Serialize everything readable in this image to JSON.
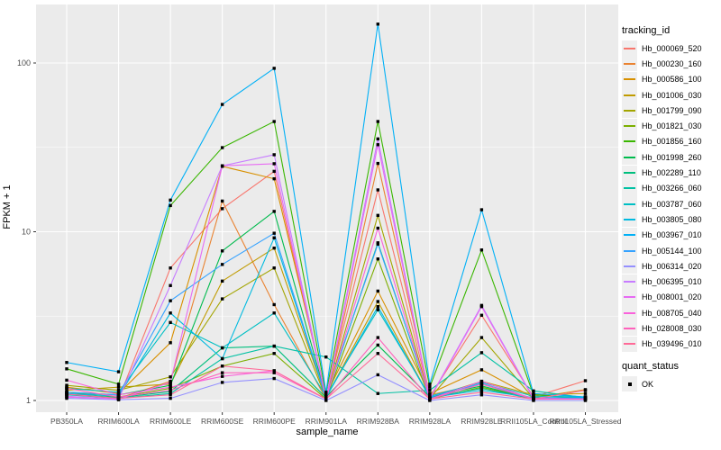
{
  "figure": {
    "y_axis": {
      "title": "FPKM + 1"
    },
    "x_axis": {
      "title": "sample_name"
    },
    "legend_tracking": {
      "title": "tracking_id"
    },
    "legend_quant": {
      "title": "quant_status",
      "items": [
        {
          "label": "OK"
        }
      ]
    }
  },
  "chart_data": {
    "type": "line",
    "title": "",
    "xlabel": "sample_name",
    "ylabel": "FPKM + 1",
    "y_scale": "log10",
    "ylim": [
      0.85,
      220
    ],
    "grid": "on",
    "legend_position": "right",
    "panel_background": "#EBEBEB",
    "gridline_color": "#FFFFFF",
    "point_color": "#000000",
    "point_shape": "square",
    "quant_status_label": "OK",
    "y_tick_labels": [
      "1",
      "10",
      "100"
    ],
    "y_major_ticks": [
      1,
      10,
      100
    ],
    "y_minor_gridlines": [
      3.162,
      31.62
    ],
    "categories": [
      "PB350LA",
      "RRIM600LA",
      "RRIM600LE",
      "RRIM600SE",
      "RRIM600PE",
      "RRIM901LA",
      "RRIM928BA",
      "RRIM928LA",
      "RRIM928LE",
      "RRII105LA_Control",
      "RRII105LA_Stressed"
    ],
    "series": [
      {
        "name": "Hb_000069_520",
        "color": "#F8766D",
        "values": [
          1.05,
          1.02,
          6.1,
          13.7,
          22.8,
          1.05,
          17.7,
          1.05,
          3.2,
          1.05,
          1.31
        ]
      },
      {
        "name": "Hb_000230_160",
        "color": "#EA8331",
        "values": [
          1.1,
          1.03,
          1.3,
          15.2,
          3.7,
          1.02,
          25.4,
          1.08,
          1.25,
          1.02,
          1.02
        ]
      },
      {
        "name": "Hb_000586_100",
        "color": "#D89000",
        "values": [
          1.2,
          1.1,
          2.2,
          24.4,
          20.6,
          1.08,
          4.45,
          1.1,
          1.52,
          1.04,
          1.16
        ]
      },
      {
        "name": "Hb_001006_030",
        "color": "#C09B00",
        "values": [
          1.15,
          1.2,
          1.25,
          5.1,
          8.0,
          1.04,
          3.86,
          1.04,
          1.3,
          1.08,
          1.1
        ]
      },
      {
        "name": "Hb_001799_090",
        "color": "#A3A500",
        "values": [
          1.23,
          1.15,
          1.38,
          4.0,
          6.1,
          1.03,
          12.5,
          1.03,
          2.36,
          1.03,
          1.05
        ]
      },
      {
        "name": "Hb_001821_030",
        "color": "#7CAE00",
        "values": [
          1.12,
          1.05,
          1.18,
          1.6,
          1.9,
          1.02,
          6.9,
          1.02,
          1.2,
          1.02,
          1.03
        ]
      },
      {
        "name": "Hb_001856_160",
        "color": "#39B600",
        "values": [
          1.54,
          1.25,
          14.3,
          31.5,
          45.0,
          1.1,
          45.0,
          1.2,
          7.8,
          1.08,
          1.03
        ]
      },
      {
        "name": "Hb_001998_260",
        "color": "#00BB4E",
        "values": [
          1.12,
          1.08,
          1.23,
          7.7,
          13.2,
          1.05,
          2.13,
          1.05,
          1.22,
          1.02,
          1.02
        ]
      },
      {
        "name": "Hb_002289_110",
        "color": "#00BF7D",
        "values": [
          1.09,
          1.04,
          1.13,
          2.05,
          2.1,
          1.04,
          8.6,
          1.04,
          1.18,
          1.02,
          1.02
        ]
      },
      {
        "name": "Hb_003266_060",
        "color": "#00C1A3",
        "values": [
          1.08,
          1.03,
          1.1,
          1.77,
          2.1,
          1.81,
          1.1,
          1.15,
          1.92,
          1.14,
          1.04
        ]
      },
      {
        "name": "Hb_003787_060",
        "color": "#00BFC4",
        "values": [
          1.18,
          1.12,
          2.9,
          2.05,
          3.3,
          1.06,
          3.45,
          1.06,
          1.28,
          1.06,
          1.05
        ]
      },
      {
        "name": "Hb_003805_080",
        "color": "#00BAE0",
        "values": [
          1.1,
          1.06,
          3.3,
          1.77,
          9.2,
          1.04,
          3.6,
          1.04,
          1.15,
          1.04,
          1.04
        ]
      },
      {
        "name": "Hb_003967_010",
        "color": "#00B0F6",
        "values": [
          1.68,
          1.48,
          15.4,
          56.8,
          93.0,
          1.12,
          170.0,
          1.25,
          13.5,
          1.1,
          1.05
        ]
      },
      {
        "name": "Hb_005144_100",
        "color": "#35A2FF",
        "values": [
          1.12,
          1.08,
          3.9,
          6.4,
          9.8,
          1.05,
          8.45,
          1.05,
          1.26,
          1.03,
          1.03
        ]
      },
      {
        "name": "Hb_006314_020",
        "color": "#9590FF",
        "values": [
          1.03,
          1.01,
          1.03,
          1.28,
          1.35,
          1.0,
          1.42,
          1.0,
          1.08,
          1.0,
          1.0
        ]
      },
      {
        "name": "Hb_006395_010",
        "color": "#C77CFF",
        "values": [
          1.06,
          1.02,
          4.8,
          24.6,
          28.6,
          1.03,
          35.5,
          1.03,
          3.66,
          1.03,
          1.02
        ]
      },
      {
        "name": "Hb_008001_020",
        "color": "#E76BF3",
        "values": [
          1.05,
          1.02,
          1.28,
          24.6,
          25.3,
          1.02,
          32.8,
          1.02,
          3.6,
          1.02,
          1.02
        ]
      },
      {
        "name": "Hb_008705_040",
        "color": "#FA62DB",
        "values": [
          1.32,
          1.08,
          1.2,
          1.39,
          1.5,
          1.02,
          10.5,
          1.02,
          1.3,
          1.02,
          1.02
        ]
      },
      {
        "name": "Hb_028008_030",
        "color": "#FF62BC",
        "values": [
          1.18,
          1.05,
          1.15,
          1.46,
          1.46,
          1.02,
          2.36,
          1.02,
          1.25,
          1.02,
          1.02
        ]
      },
      {
        "name": "Hb_039496_010",
        "color": "#FF6A98",
        "values": [
          1.09,
          1.03,
          1.08,
          1.6,
          1.5,
          1.02,
          1.9,
          1.02,
          1.12,
          1.02,
          1.15
        ]
      }
    ]
  }
}
